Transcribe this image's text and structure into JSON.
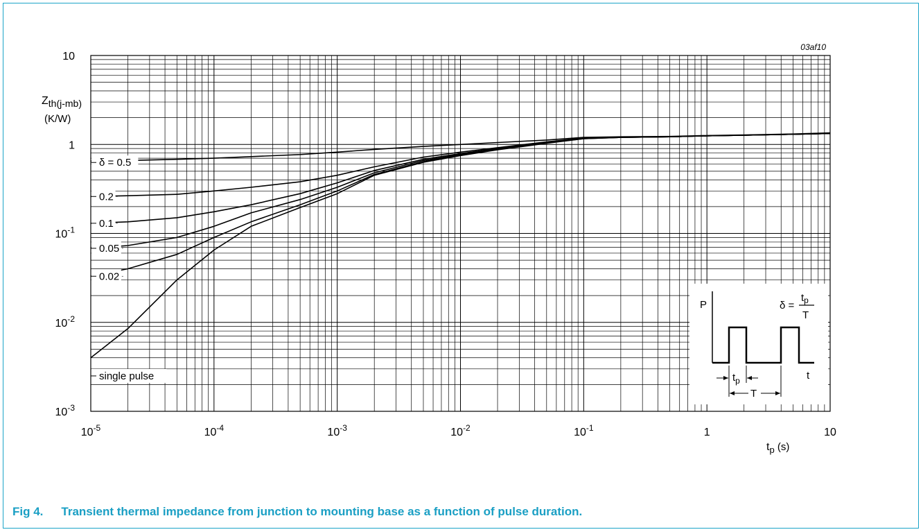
{
  "caption": {
    "number": "Fig 4.",
    "text": "Transient thermal impedance from junction to mounting base as a function of pulse duration."
  },
  "colors": {
    "accent": "#1aa3c8",
    "caption": "#1a9fc4",
    "ink": "#000000"
  },
  "chart_data": {
    "type": "line",
    "code": "03af10",
    "x_scale": "log",
    "y_scale": "log",
    "xlim": [
      1e-05,
      10
    ],
    "ylim": [
      0.001,
      10
    ],
    "grid": true,
    "xlabel": {
      "main": "t",
      "sub": "p",
      "unit": " (s)"
    },
    "ylabel": {
      "main": "Z",
      "sub": "th(j-mb)",
      "unit": "(K/W)"
    },
    "x_ticks": [
      {
        "value": 1e-05,
        "base": "10",
        "exp": "-5"
      },
      {
        "value": 0.0001,
        "base": "10",
        "exp": "-4"
      },
      {
        "value": 0.001,
        "base": "10",
        "exp": "-3"
      },
      {
        "value": 0.01,
        "base": "10",
        "exp": "-2"
      },
      {
        "value": 0.1,
        "base": "10",
        "exp": "-1"
      },
      {
        "value": 1,
        "base": "1",
        "exp": ""
      },
      {
        "value": 10,
        "base": "10",
        "exp": ""
      }
    ],
    "y_ticks": [
      {
        "value": 10,
        "base": "10",
        "exp": ""
      },
      {
        "value": 1,
        "base": "1",
        "exp": ""
      },
      {
        "value": 0.1,
        "base": "10",
        "exp": "-1"
      },
      {
        "value": 0.01,
        "base": "10",
        "exp": "-2"
      },
      {
        "value": 0.001,
        "base": "10",
        "exp": "-3"
      }
    ],
    "series": [
      {
        "name": "δ = 0.5",
        "x": [
          1e-05,
          2e-05,
          5e-05,
          0.0001,
          0.0002,
          0.0005,
          0.001,
          0.002,
          0.005,
          0.01,
          0.02,
          0.05,
          0.1,
          0.2,
          0.5,
          1,
          2,
          5,
          10
        ],
        "y": [
          0.65,
          0.66,
          0.68,
          0.7,
          0.73,
          0.77,
          0.82,
          0.88,
          0.95,
          1.0,
          1.05,
          1.12,
          1.2,
          1.22,
          1.23,
          1.26,
          1.28,
          1.31,
          1.35
        ]
      },
      {
        "name": "0.2",
        "x": [
          1e-05,
          2e-05,
          5e-05,
          0.0001,
          0.0002,
          0.0005,
          0.001,
          0.002,
          0.005,
          0.01,
          0.02,
          0.05,
          0.1,
          0.2,
          0.5,
          1,
          2,
          5,
          10
        ],
        "y": [
          0.26,
          0.265,
          0.275,
          0.3,
          0.33,
          0.38,
          0.45,
          0.56,
          0.72,
          0.82,
          0.92,
          1.07,
          1.18,
          1.21,
          1.22,
          1.25,
          1.27,
          1.3,
          1.33
        ]
      },
      {
        "name": "0.1",
        "x": [
          1e-05,
          2e-05,
          5e-05,
          0.0001,
          0.0002,
          0.0005,
          0.001,
          0.002,
          0.005,
          0.01,
          0.02,
          0.05,
          0.1,
          0.2,
          0.5,
          1,
          2,
          5,
          10
        ],
        "y": [
          0.13,
          0.135,
          0.15,
          0.175,
          0.21,
          0.28,
          0.37,
          0.51,
          0.68,
          0.79,
          0.9,
          1.06,
          1.17,
          1.2,
          1.22,
          1.25,
          1.27,
          1.3,
          1.33
        ]
      },
      {
        "name": "0.05",
        "x": [
          1e-05,
          2e-05,
          5e-05,
          0.0001,
          0.0002,
          0.0005,
          0.001,
          0.002,
          0.005,
          0.01,
          0.02,
          0.05,
          0.1,
          0.2,
          0.5,
          1,
          2,
          5,
          10
        ],
        "y": [
          0.068,
          0.073,
          0.09,
          0.12,
          0.17,
          0.24,
          0.33,
          0.48,
          0.66,
          0.77,
          0.89,
          1.05,
          1.17,
          1.2,
          1.22,
          1.25,
          1.27,
          1.3,
          1.33
        ]
      },
      {
        "name": "0.02",
        "x": [
          1e-05,
          2e-05,
          5e-05,
          0.0001,
          0.0002,
          0.0005,
          0.001,
          0.002,
          0.005,
          0.01,
          0.02,
          0.05,
          0.1,
          0.2,
          0.5,
          1,
          2,
          5,
          10
        ],
        "y": [
          0.033,
          0.04,
          0.058,
          0.09,
          0.135,
          0.21,
          0.3,
          0.46,
          0.64,
          0.76,
          0.88,
          1.04,
          1.16,
          1.2,
          1.22,
          1.25,
          1.27,
          1.3,
          1.33
        ]
      },
      {
        "name": "single pulse",
        "x": [
          1e-05,
          2e-05,
          5e-05,
          0.0001,
          0.0002,
          0.0005,
          0.001,
          0.002,
          0.005,
          0.01,
          0.02,
          0.05,
          0.1,
          0.2,
          0.5,
          1,
          2,
          5,
          10
        ],
        "y": [
          0.004,
          0.0085,
          0.03,
          0.065,
          0.12,
          0.195,
          0.28,
          0.45,
          0.63,
          0.75,
          0.87,
          1.03,
          1.16,
          1.2,
          1.22,
          1.25,
          1.27,
          1.3,
          1.33
        ]
      }
    ],
    "inset": {
      "label_P": "P",
      "label_t": "t",
      "label_T": "T",
      "tp_main": "t",
      "tp_sub": "p",
      "formula_lhs": "δ =",
      "formula_num_main": "t",
      "formula_num_sub": "p",
      "formula_den": "T"
    }
  }
}
